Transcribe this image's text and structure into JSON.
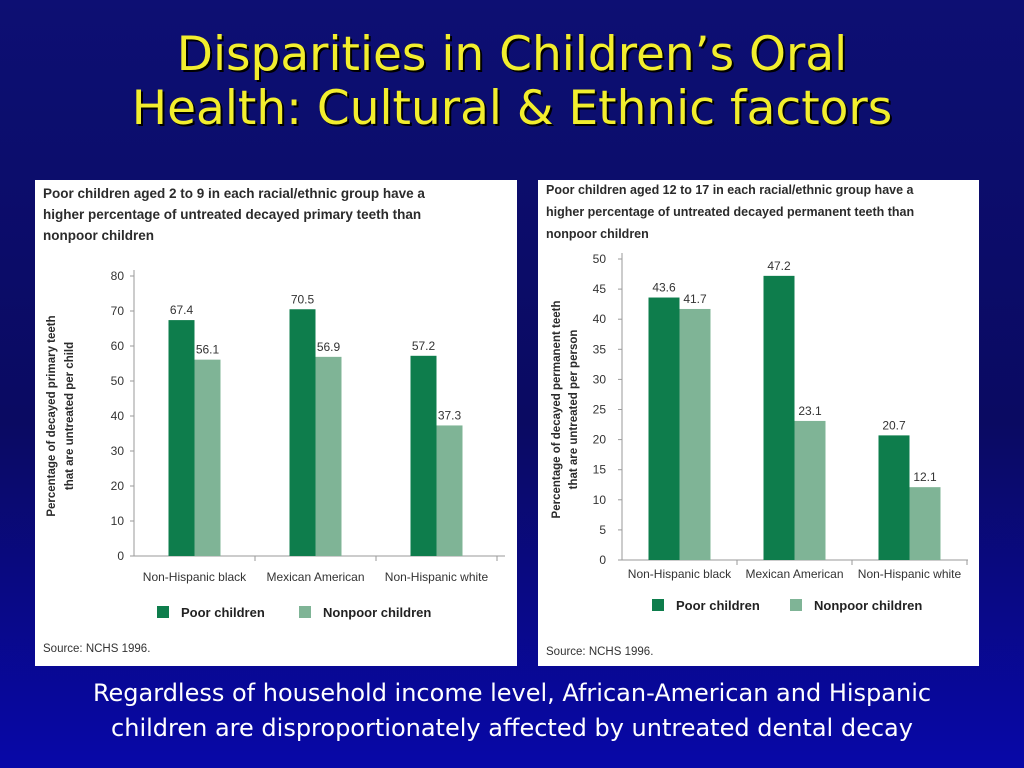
{
  "title": [
    "Disparities in Children’s Oral",
    "Health: Cultural & Ethnic factors"
  ],
  "caption": [
    "Regardless of household income level, African-American and Hispanic",
    "children are disproportionately affected by untreated dental decay"
  ],
  "colors": {
    "poor": "#0e7d4c",
    "nonpoor": "#7fb496",
    "title": "#f2ee2e",
    "axis": "#9a9a9a"
  },
  "chart_data": [
    {
      "type": "bar",
      "title": [
        "Poor children aged 2 to 9 in each racial/ethnic group have a",
        "higher percentage of untreated decayed primary teeth than",
        "nonpoor children"
      ],
      "ylabel": [
        "Percentage of decayed primary teeth",
        "that are untreated per child"
      ],
      "xlabel": "",
      "categories": [
        "Non-Hispanic black",
        "Mexican American",
        "Non-Hispanic white"
      ],
      "series": [
        {
          "name": "Poor children",
          "values": [
            67.4,
            70.5,
            57.2
          ]
        },
        {
          "name": "Nonpoor children",
          "values": [
            56.1,
            56.9,
            37.3
          ]
        }
      ],
      "ylim": [
        0,
        80
      ],
      "yticks": [
        0,
        10,
        20,
        30,
        40,
        50,
        60,
        70,
        80
      ],
      "value_labels": [
        [
          "67.4",
          "70.5",
          "57.2"
        ],
        [
          "56.1",
          "56.9",
          "37.3"
        ]
      ],
      "source": "Source: NCHS 1996.",
      "legend": "bottom",
      "grid": false
    },
    {
      "type": "bar",
      "title": [
        "Poor children aged 12 to 17 in each racial/ethnic group have a",
        "higher percentage of untreated decayed permanent teeth than",
        "nonpoor children"
      ],
      "ylabel": [
        "Percentage of decayed permanent teeth",
        "that are untreated per person"
      ],
      "xlabel": "",
      "categories": [
        "Non-Hispanic black",
        "Mexican American",
        "Non-Hispanic white"
      ],
      "series": [
        {
          "name": "Poor children",
          "values": [
            43.6,
            47.2,
            20.7
          ]
        },
        {
          "name": "Nonpoor children",
          "values": [
            41.7,
            23.1,
            12.1
          ]
        }
      ],
      "ylim": [
        0,
        50
      ],
      "yticks": [
        0,
        5,
        10,
        15,
        20,
        25,
        30,
        35,
        40,
        45,
        50
      ],
      "value_labels": [
        [
          "43.6",
          "47.2",
          "20.7"
        ],
        [
          "41.7",
          "23.1",
          "12.1"
        ]
      ],
      "source": "Source: NCHS 1996.",
      "legend": "bottom",
      "grid": false
    }
  ]
}
